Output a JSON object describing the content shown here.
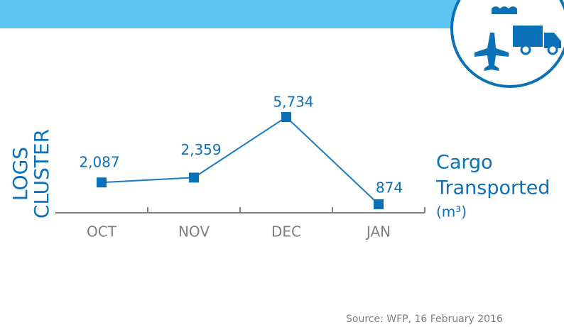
{
  "chart_data": {
    "type": "line",
    "side_label": [
      "LOGS",
      "CLUSTER"
    ],
    "measure": [
      "Cargo",
      "Transported"
    ],
    "unit": "(m³)",
    "categories": [
      "OCT",
      "NOV",
      "DEC",
      "JAN"
    ],
    "values": [
      2087,
      2359,
      5734,
      874
    ],
    "value_labels": [
      "2,087",
      "2,359",
      "5,734",
      "874"
    ],
    "color": "#0a71b9",
    "ylim": [
      0,
      7000
    ],
    "source": "Source: WFP, 16 February 2016"
  }
}
